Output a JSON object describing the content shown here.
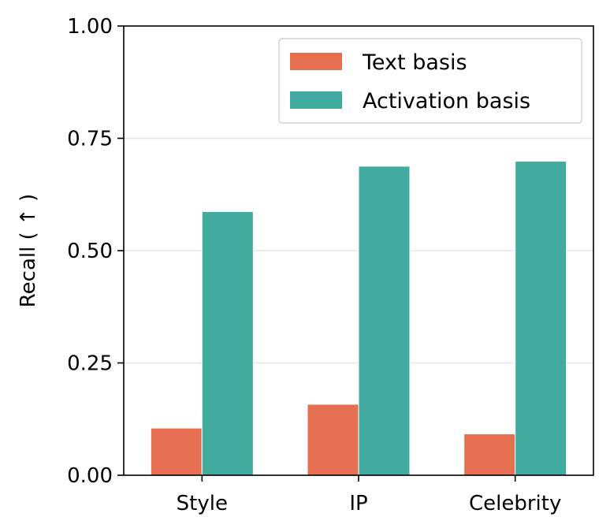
{
  "chart_data": {
    "type": "bar",
    "categories": [
      "Style",
      "IP",
      "Celebrity"
    ],
    "series": [
      {
        "name": "Text basis",
        "values": [
          0.105,
          0.158,
          0.092
        ],
        "color": "#e76f51"
      },
      {
        "name": "Activation basis",
        "values": [
          0.587,
          0.688,
          0.699
        ],
        "color": "#40ab9e"
      }
    ],
    "title": "",
    "xlabel": "",
    "ylabel": "Recall ( ↑ )",
    "ylim": [
      0,
      1.0
    ],
    "yticks": [
      "0.00",
      "0.25",
      "0.50",
      "0.75",
      "1.00"
    ],
    "ytick_values": [
      0,
      0.25,
      0.5,
      0.75,
      1.0
    ],
    "grid": "horizontal",
    "legend_position": "top-right"
  }
}
